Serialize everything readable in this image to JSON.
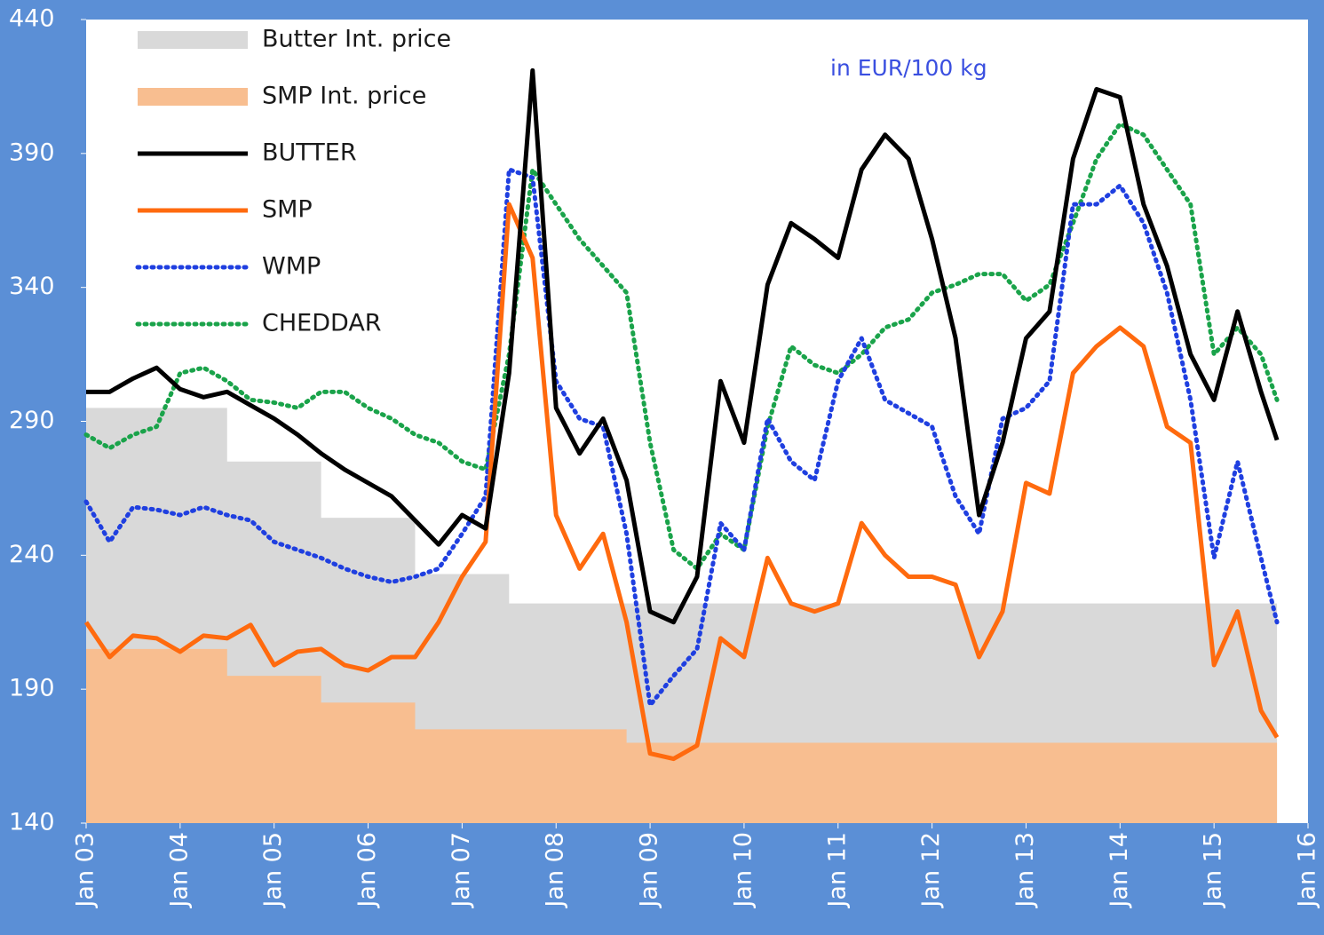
{
  "chart_data": {
    "type": "line",
    "annotation": "in EUR/100 kg",
    "xlim": [
      2003,
      2016
    ],
    "xticks": [
      {
        "value": 2003,
        "label": "Jan 03"
      },
      {
        "value": 2004,
        "label": "Jan 04"
      },
      {
        "value": 2005,
        "label": "Jan 05"
      },
      {
        "value": 2006,
        "label": "Jan 06"
      },
      {
        "value": 2007,
        "label": "Jan 07"
      },
      {
        "value": 2008,
        "label": "Jan 08"
      },
      {
        "value": 2009,
        "label": "Jan 09"
      },
      {
        "value": 2010,
        "label": "Jan 10"
      },
      {
        "value": 2011,
        "label": "Jan 11"
      },
      {
        "value": 2012,
        "label": "Jan 12"
      },
      {
        "value": 2013,
        "label": "Jan 13"
      },
      {
        "value": 2014,
        "label": "Jan 14"
      },
      {
        "value": 2015,
        "label": "Jan 15"
      },
      {
        "value": 2016,
        "label": "Jan 16"
      }
    ],
    "ylim": [
      140,
      440
    ],
    "yticks": [
      140,
      190,
      240,
      290,
      340,
      390,
      440
    ],
    "x": [
      2003,
      2003.25,
      2003.5,
      2003.75,
      2004,
      2004.25,
      2004.5,
      2004.75,
      2005,
      2005.25,
      2005.5,
      2005.75,
      2006,
      2006.25,
      2006.5,
      2006.75,
      2007,
      2007.25,
      2007.5,
      2007.75,
      2008,
      2008.25,
      2008.5,
      2008.75,
      2009,
      2009.25,
      2009.5,
      2009.75,
      2010,
      2010.25,
      2010.5,
      2010.75,
      2011,
      2011.25,
      2011.5,
      2011.75,
      2012,
      2012.25,
      2012.5,
      2012.75,
      2013,
      2013.25,
      2013.5,
      2013.75,
      2014,
      2014.25,
      2014.5,
      2014.75,
      2015,
      2015.25,
      2015.5,
      2015.67
    ],
    "series": [
      {
        "name": "Butter Int. price",
        "color": "#d9d9d9",
        "style": "area",
        "x": [
          2003,
          2004.5,
          2004.5,
          2005.5,
          2005.5,
          2006.5,
          2006.5,
          2007.5,
          2007.5,
          2015.67
        ],
        "values": [
          295,
          295,
          275,
          275,
          254,
          254,
          233,
          233,
          222,
          222
        ]
      },
      {
        "name": "SMP Int. price",
        "color": "#f8be90",
        "style": "area",
        "x": [
          2003,
          2004.5,
          2004.5,
          2005.5,
          2005.5,
          2006.5,
          2006.5,
          2008.75,
          2008.75,
          2015.67
        ],
        "values": [
          205,
          205,
          195,
          195,
          185,
          185,
          175,
          175,
          170,
          170
        ]
      },
      {
        "name": "BUTTER",
        "color": "#000000",
        "style": "solid",
        "values": [
          301,
          301,
          306,
          310,
          302,
          299,
          301,
          296,
          291,
          285,
          278,
          272,
          267,
          262,
          253,
          244,
          255,
          250,
          308,
          421,
          295,
          278,
          291,
          268,
          219,
          215,
          232,
          305,
          282,
          341,
          364,
          358,
          351,
          384,
          397,
          388,
          358,
          321,
          255,
          282,
          321,
          331,
          388,
          414,
          411,
          371,
          348,
          315,
          298,
          331,
          301,
          283
        ]
      },
      {
        "name": "SMP",
        "color": "#ff6a0e",
        "style": "solid",
        "values": [
          215,
          202,
          210,
          209,
          204,
          210,
          209,
          214,
          199,
          204,
          205,
          199,
          197,
          202,
          202,
          215,
          232,
          245,
          371,
          351,
          255,
          235,
          248,
          215,
          166,
          164,
          169,
          209,
          202,
          239,
          222,
          219,
          222,
          252,
          240,
          232,
          232,
          229,
          202,
          219,
          267,
          263,
          308,
          318,
          325,
          318,
          288,
          282,
          199,
          219,
          182,
          172
        ]
      },
      {
        "name": "WMP",
        "color": "#1f3fe0",
        "style": "dotted",
        "values": [
          260,
          245,
          258,
          257,
          255,
          258,
          255,
          253,
          245,
          242,
          239,
          235,
          232,
          230,
          232,
          235,
          248,
          262,
          384,
          381,
          305,
          291,
          288,
          248,
          184,
          195,
          205,
          252,
          242,
          291,
          275,
          268,
          305,
          321,
          298,
          293,
          288,
          262,
          248,
          291,
          295,
          305,
          371,
          371,
          378,
          364,
          338,
          298,
          239,
          275,
          239,
          215
        ]
      },
      {
        "name": "CHEDDAR",
        "color": "#1aa34a",
        "style": "dotted",
        "values": [
          285,
          280,
          285,
          288,
          308,
          310,
          305,
          298,
          297,
          295,
          301,
          301,
          295,
          291,
          285,
          282,
          275,
          272,
          315,
          384,
          371,
          358,
          348,
          338,
          282,
          242,
          235,
          248,
          242,
          288,
          318,
          311,
          308,
          315,
          325,
          328,
          338,
          341,
          345,
          345,
          335,
          341,
          364,
          388,
          401,
          397,
          384,
          371,
          315,
          325,
          315,
          298
        ]
      }
    ]
  }
}
